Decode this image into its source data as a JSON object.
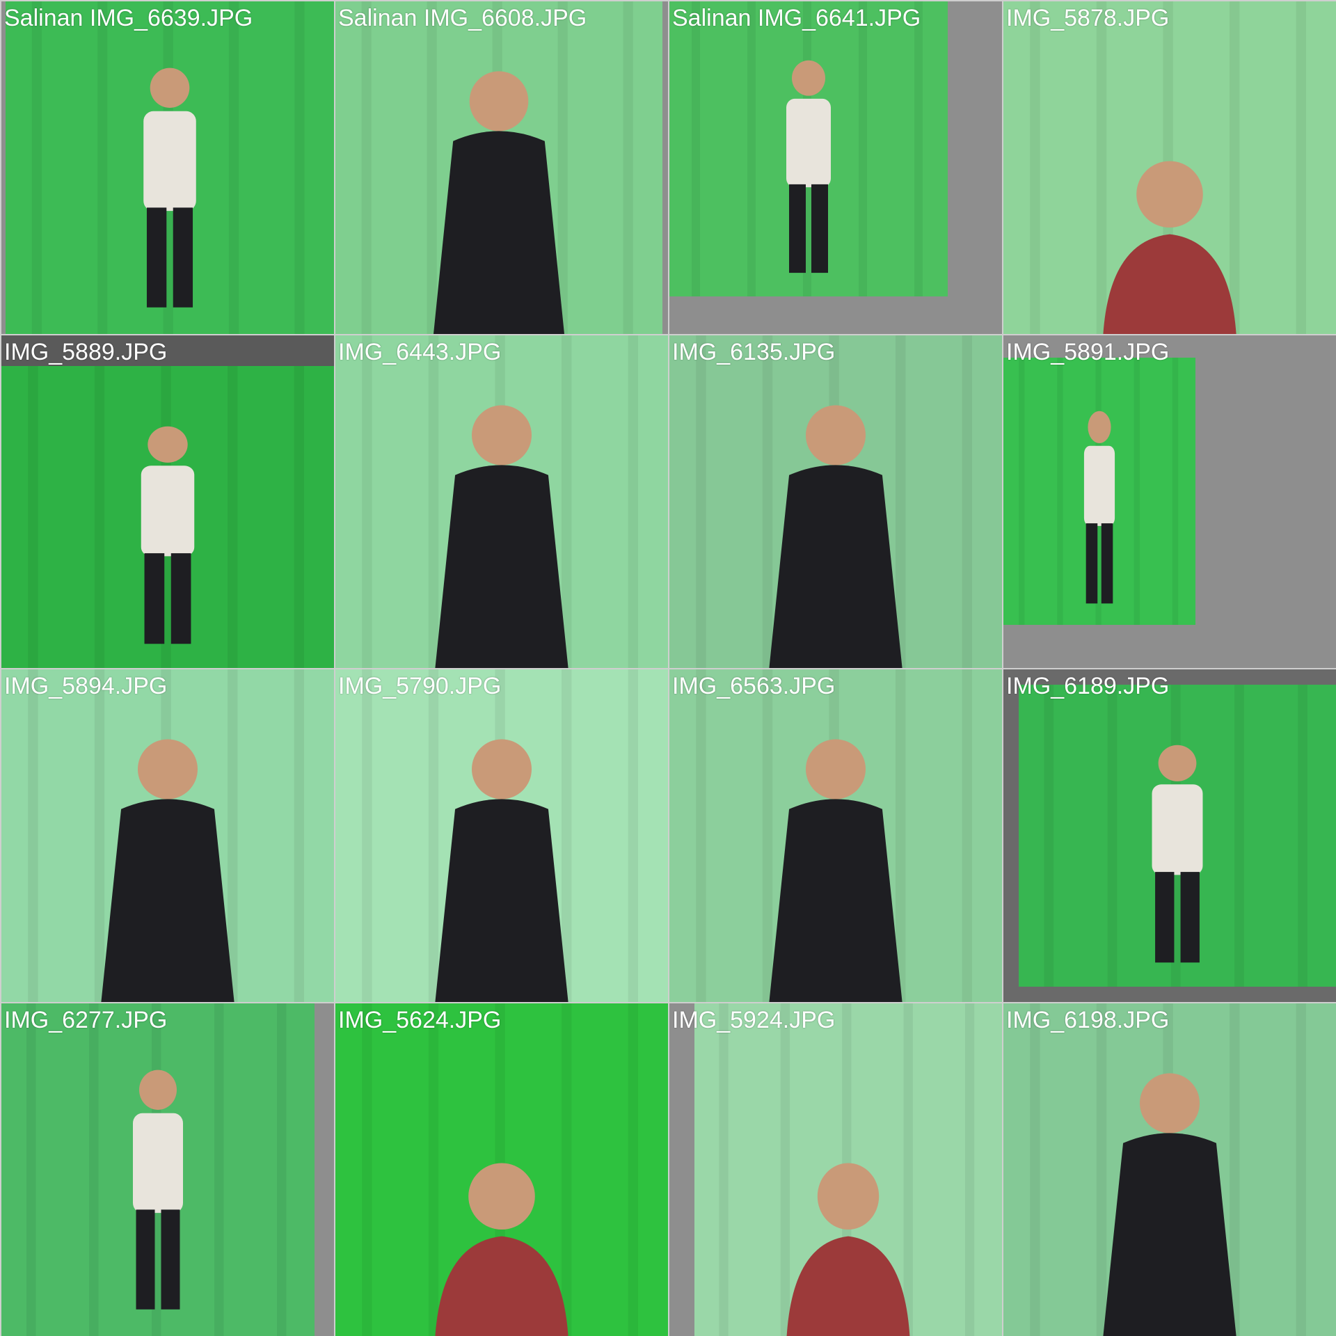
{
  "gallery": {
    "tiles": [
      {
        "caption": "Salinan IMG_6639.JPG",
        "bg": "#3dbb55",
        "fig": "full"
      },
      {
        "caption": "Salinan IMG_6608.JPG",
        "bg": "#7fcf8f",
        "fig": "half"
      },
      {
        "caption": "Salinan IMG_6641.JPG",
        "bg": "#4dc060",
        "fig": "full"
      },
      {
        "caption": "IMG_5878.JPG",
        "bg": "#8fd49a",
        "fig": "bust"
      },
      {
        "caption": "IMG_5889.JPG",
        "bg": "#2eb245",
        "fig": "full"
      },
      {
        "caption": "IMG_6443.JPG",
        "bg": "#8fd6a0",
        "fig": "half"
      },
      {
        "caption": "IMG_6135.JPG",
        "bg": "#86c896",
        "fig": "half"
      },
      {
        "caption": "IMG_5891.JPG",
        "bg": "#38c050",
        "fig": "full"
      },
      {
        "caption": "IMG_5894.JPG",
        "bg": "#92d8a6",
        "fig": "half"
      },
      {
        "caption": "IMG_5790.JPG",
        "bg": "#a4e2b4",
        "fig": "half"
      },
      {
        "caption": "IMG_6563.JPG",
        "bg": "#8ccf9c",
        "fig": "half"
      },
      {
        "caption": "IMG_6189.JPG",
        "bg": "#37b651",
        "fig": "full"
      },
      {
        "caption": "IMG_6277.JPG",
        "bg": "#4dba66",
        "fig": "full"
      },
      {
        "caption": "IMG_5624.JPG",
        "bg": "#2ec23f",
        "fig": "bust"
      },
      {
        "caption": "IMG_5924.JPG",
        "bg": "#9ad7a8",
        "fig": "bust"
      },
      {
        "caption": "IMG_6198.JPG",
        "bg": "#84c996",
        "fig": "half"
      }
    ]
  }
}
